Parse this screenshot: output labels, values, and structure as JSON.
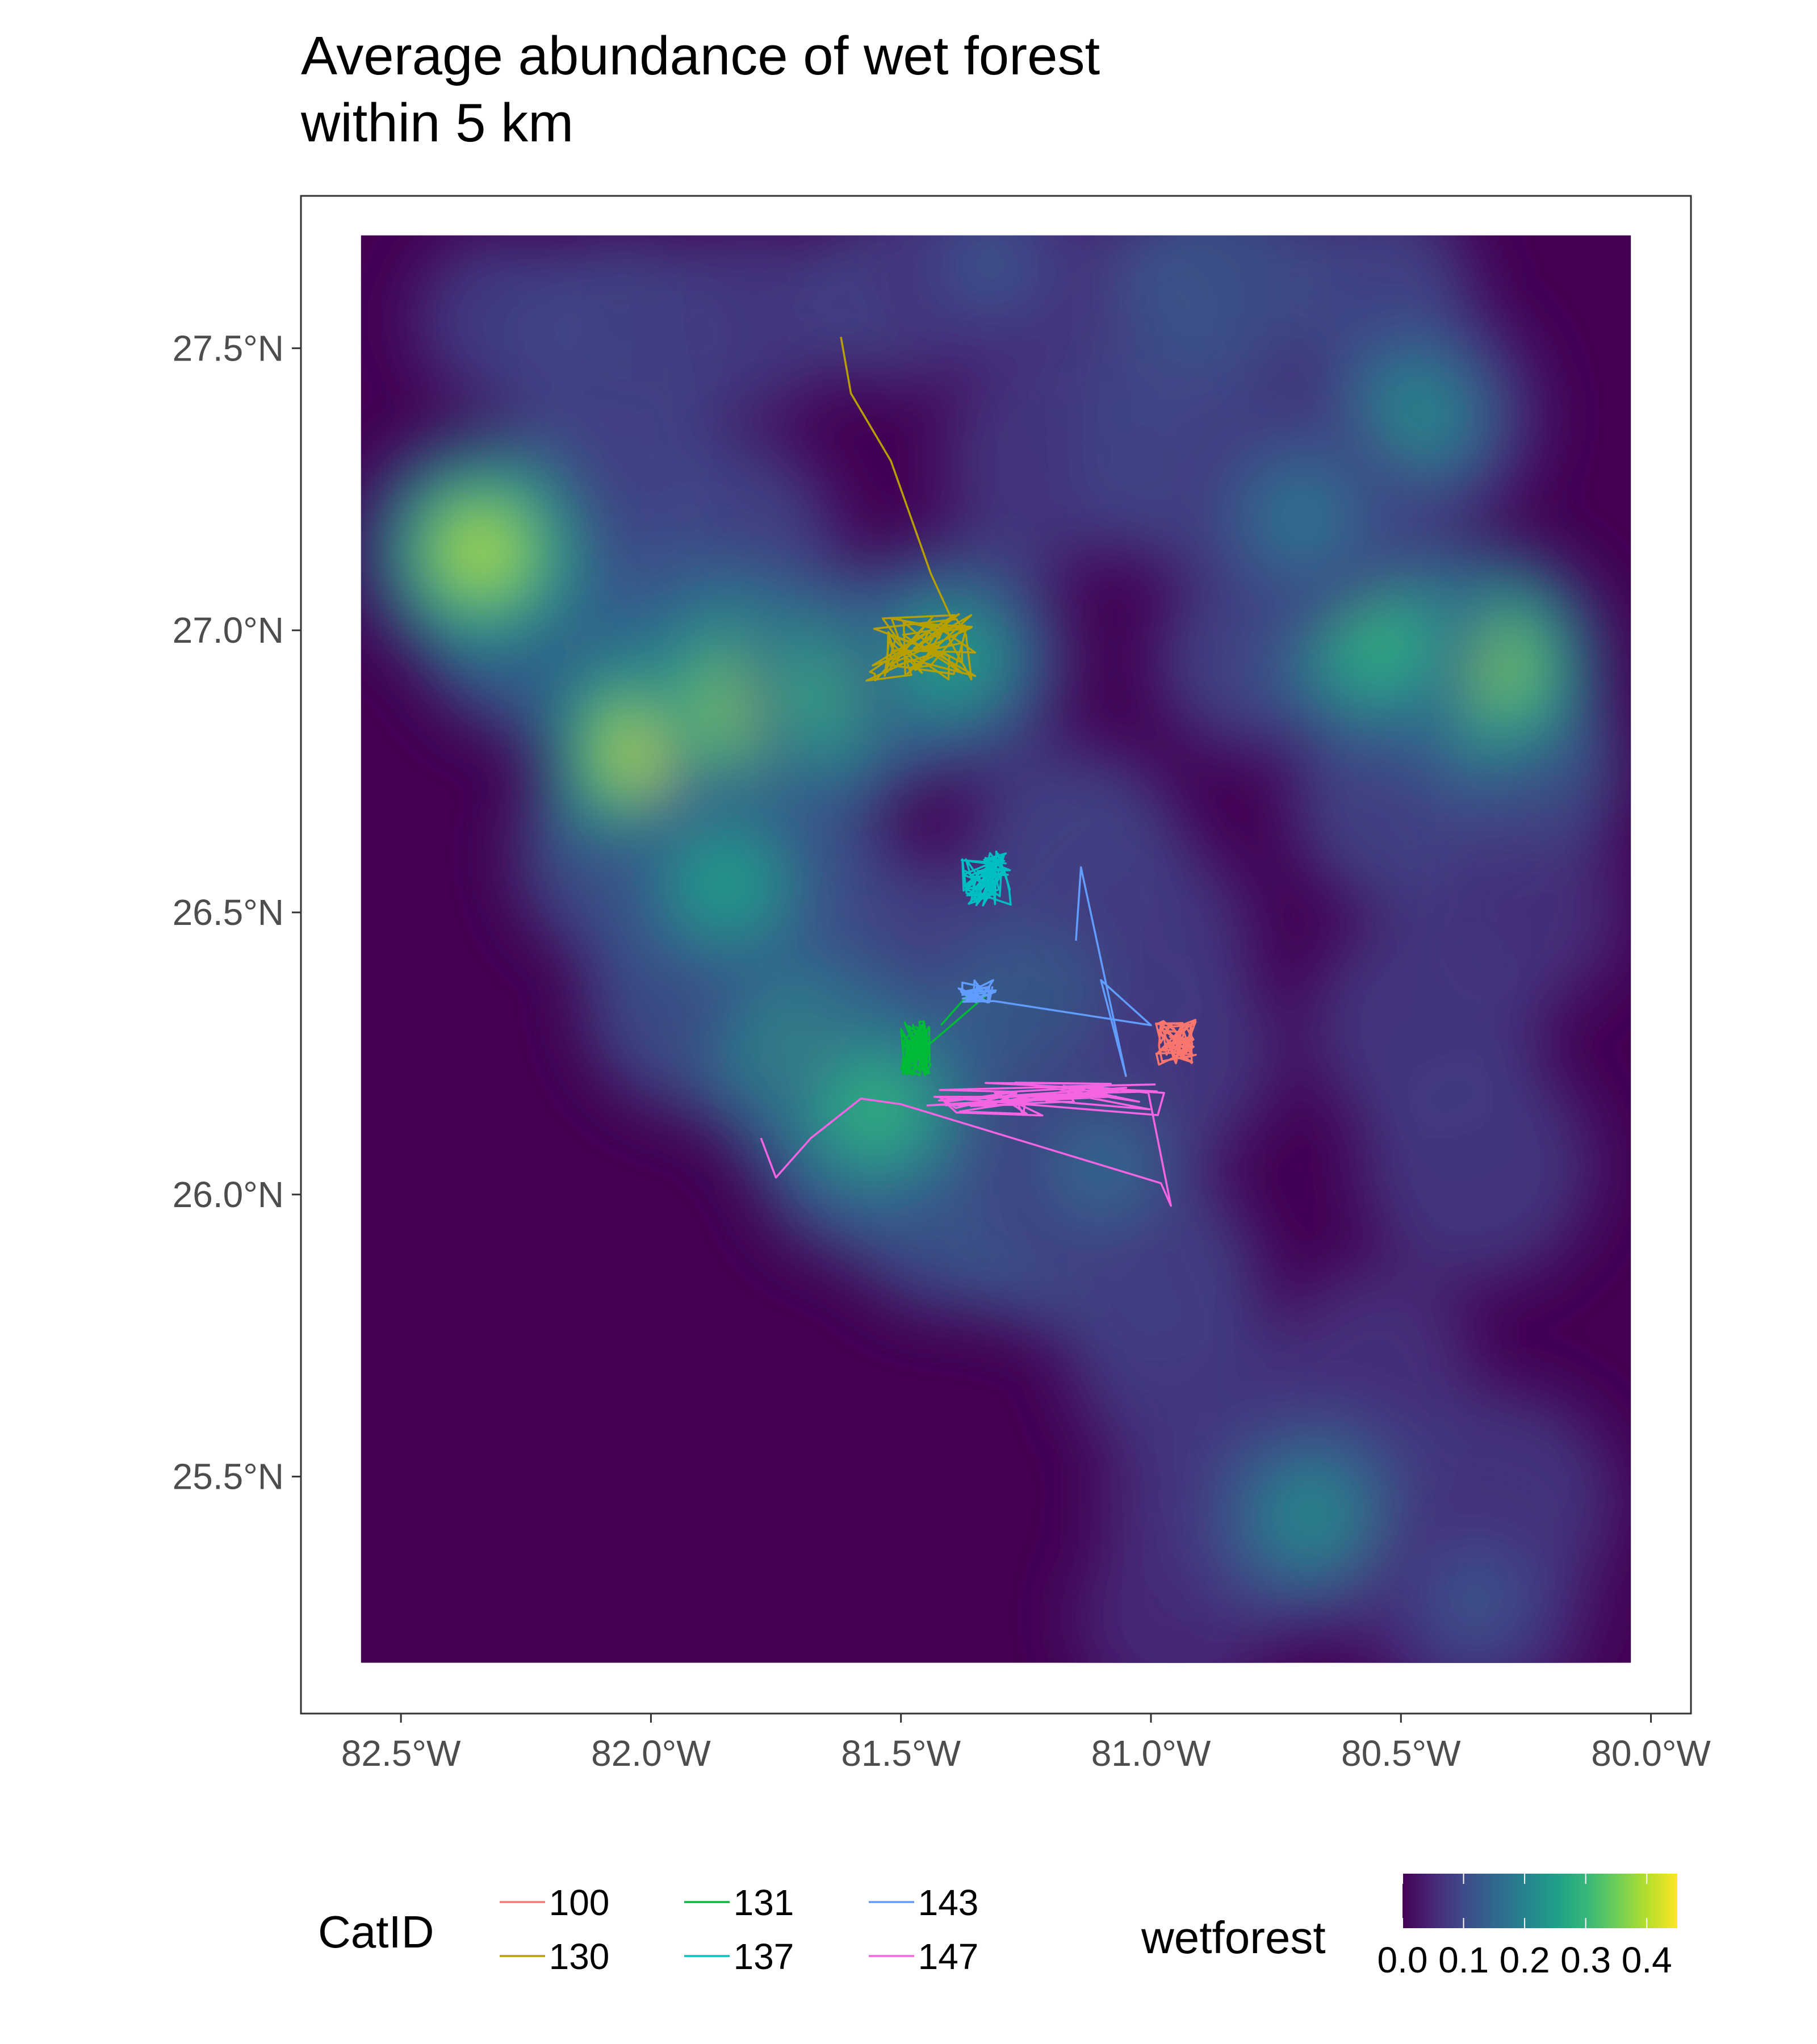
{
  "title_lines": [
    "Average abundance of wet forest",
    "within 5 km"
  ],
  "chart_data": {
    "type": "map",
    "title": "Average abundance of wet forest within 5 km",
    "xlim": [
      -82.7,
      -79.92
    ],
    "ylim": [
      25.08,
      27.77
    ],
    "raster_extent": {
      "lon": [
        -82.58,
        -80.04
      ],
      "lat": [
        25.17,
        27.7
      ]
    },
    "x_ticks": [
      {
        "value": -82.5,
        "label": "82.5°W"
      },
      {
        "value": -82.0,
        "label": "82.0°W"
      },
      {
        "value": -81.5,
        "label": "81.5°W"
      },
      {
        "value": -81.0,
        "label": "81.0°W"
      },
      {
        "value": -80.5,
        "label": "80.5°W"
      },
      {
        "value": -80.0,
        "label": "80.0°W"
      }
    ],
    "y_ticks": [
      {
        "value": 25.5,
        "label": "25.5°N"
      },
      {
        "value": 26.0,
        "label": "26.0°N"
      },
      {
        "value": 26.5,
        "label": "26.5°N"
      },
      {
        "value": 27.0,
        "label": "27.0°N"
      },
      {
        "value": 27.5,
        "label": "27.5°N"
      }
    ],
    "wetforest_hotspots": [
      {
        "lon": -82.34,
        "lat": 27.14,
        "value": 0.4
      },
      {
        "lon": -82.0,
        "lat": 26.79,
        "value": 0.42
      },
      {
        "lon": -81.78,
        "lat": 26.87,
        "value": 0.44
      },
      {
        "lon": -81.6,
        "lat": 26.9,
        "value": 0.32
      },
      {
        "lon": -81.4,
        "lat": 26.95,
        "value": 0.26
      },
      {
        "lon": -81.85,
        "lat": 26.55,
        "value": 0.26
      },
      {
        "lon": -81.65,
        "lat": 26.22,
        "value": 0.36
      },
      {
        "lon": -81.55,
        "lat": 26.15,
        "value": 0.3
      },
      {
        "lon": -81.1,
        "lat": 26.05,
        "value": 0.16
      },
      {
        "lon": -80.33,
        "lat": 26.94,
        "value": 0.38
      },
      {
        "lon": -80.55,
        "lat": 26.98,
        "value": 0.3
      },
      {
        "lon": -80.47,
        "lat": 27.38,
        "value": 0.22
      },
      {
        "lon": -80.7,
        "lat": 27.2,
        "value": 0.18
      },
      {
        "lon": -81.32,
        "lat": 27.65,
        "value": 0.12
      },
      {
        "lon": -80.68,
        "lat": 25.43,
        "value": 0.22
      },
      {
        "lon": -80.35,
        "lat": 25.28,
        "value": 0.12
      }
    ],
    "tracks": [
      {
        "name": "100",
        "color": "#F8766D"
      },
      {
        "name": "130",
        "color": "#B79F00"
      },
      {
        "name": "131",
        "color": "#00BA38"
      },
      {
        "name": "137",
        "color": "#00BFC4"
      },
      {
        "name": "143",
        "color": "#619CFF"
      },
      {
        "name": "147",
        "color": "#F564E3"
      }
    ]
  },
  "legend": {
    "catid_title": "CatID",
    "catid_entries": [
      {
        "label": "100",
        "color": "#F8766D"
      },
      {
        "label": "130",
        "color": "#B79F00"
      },
      {
        "label": "131",
        "color": "#00BA38"
      },
      {
        "label": "137",
        "color": "#00BFC4"
      },
      {
        "label": "143",
        "color": "#619CFF"
      },
      {
        "label": "147",
        "color": "#F564E3"
      }
    ],
    "wetforest_title": "wetforest",
    "colorbar_labels": [
      "0.0",
      "0.1",
      "0.2",
      "0.3",
      "0.4"
    ],
    "colorbar_range": [
      0,
      0.45
    ],
    "palette": [
      "#440154",
      "#482878",
      "#3E4A89",
      "#31688E",
      "#26828E",
      "#1F9E89",
      "#35B779",
      "#6DCD59",
      "#B4DE2C",
      "#FDE725"
    ]
  }
}
